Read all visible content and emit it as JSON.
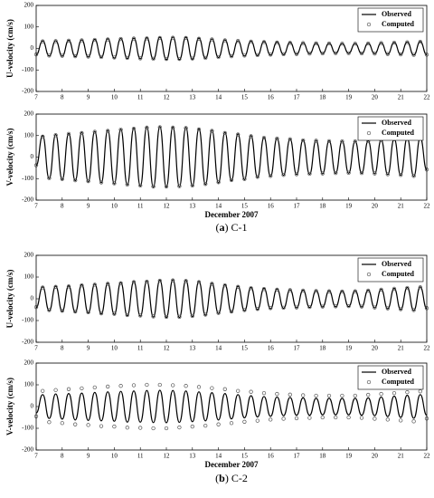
{
  "chart_data": [
    {
      "type": "line",
      "ylabel": "U-velocity (cm/s)",
      "x": [
        7,
        7.25,
        7.5,
        7.75,
        8,
        8.25,
        8.5,
        8.75,
        9,
        9.25,
        9.5,
        9.75,
        10,
        10.25,
        10.5,
        10.75,
        11,
        11.25,
        11.5,
        11.75,
        12,
        12.25,
        12.5,
        12.75,
        13,
        13.25,
        13.5,
        13.75,
        14,
        14.25,
        14.5,
        14.75,
        15,
        15.25,
        15.5,
        15.75,
        16,
        16.25,
        16.5,
        16.75,
        17,
        17.25,
        17.5,
        17.75,
        18,
        18.25,
        18.5,
        18.75,
        19,
        19.25,
        19.5,
        19.75,
        20,
        20.25,
        20.5,
        20.75,
        21,
        21.25,
        21.5,
        21.75,
        22
      ],
      "series": [
        {
          "name": "Observed",
          "color": "#000000",
          "values": [
            -30,
            35,
            -35,
            36,
            -36,
            38,
            -38,
            40,
            -40,
            42,
            -42,
            45,
            -45,
            46,
            -47,
            48,
            -48,
            50,
            -50,
            52,
            -52,
            53,
            -52,
            52,
            -50,
            48,
            -46,
            44,
            -42,
            40,
            -38,
            36,
            -35,
            34,
            -33,
            32,
            -31,
            30,
            -29,
            28,
            -27,
            26,
            -25,
            25,
            -24,
            24,
            -23,
            23,
            -23,
            23,
            -24,
            24,
            -25,
            26,
            -27,
            28,
            -29,
            30,
            -31,
            32,
            -30
          ]
        },
        {
          "name": "Computed",
          "color": "#555555",
          "marker": "circle",
          "values": [
            -28,
            33,
            -33,
            34,
            -34,
            36,
            -36,
            38,
            -38,
            40,
            -40,
            42,
            -42,
            44,
            -44,
            46,
            -46,
            47,
            -48,
            49,
            -49,
            50,
            -49,
            49,
            -47,
            45,
            -44,
            42,
            -40,
            38,
            -36,
            35,
            -33,
            32,
            -31,
            30,
            -29,
            28,
            -27,
            26,
            -26,
            25,
            -24,
            24,
            -23,
            23,
            -22,
            22,
            -22,
            22,
            -23,
            23,
            -24,
            25,
            -26,
            27,
            -28,
            29,
            -30,
            31,
            -29
          ]
        }
      ],
      "xlim": [
        7,
        22
      ],
      "ylim": [
        -200,
        200
      ],
      "xticks": [
        7,
        8,
        9,
        10,
        11,
        12,
        13,
        14,
        15,
        16,
        17,
        18,
        19,
        20,
        21,
        22
      ],
      "yticks": [
        -200,
        -100,
        0,
        100,
        200
      ],
      "legend": "upper right"
    },
    {
      "type": "line",
      "ylabel": "V-velocity (cm/s)",
      "xlabel": "December 2007",
      "x": [
        7,
        7.25,
        7.5,
        7.75,
        8,
        8.25,
        8.5,
        8.75,
        9,
        9.25,
        9.5,
        9.75,
        10,
        10.25,
        10.5,
        10.75,
        11,
        11.25,
        11.5,
        11.75,
        12,
        12.25,
        12.5,
        12.75,
        13,
        13.25,
        13.5,
        13.75,
        14,
        14.25,
        14.5,
        14.75,
        15,
        15.25,
        15.5,
        15.75,
        16,
        16.25,
        16.5,
        16.75,
        17,
        17.25,
        17.5,
        17.75,
        18,
        18.25,
        18.5,
        18.75,
        19,
        19.25,
        19.5,
        19.75,
        20,
        20.25,
        20.5,
        20.75,
        21,
        21.25,
        21.5,
        21.75,
        22
      ],
      "series": [
        {
          "name": "Observed",
          "color": "#000000",
          "values": [
            -40,
            100,
            -100,
            105,
            -105,
            110,
            -110,
            115,
            -115,
            120,
            -120,
            125,
            -125,
            130,
            -130,
            135,
            -135,
            140,
            -140,
            142,
            -140,
            140,
            -138,
            138,
            -135,
            132,
            -128,
            125,
            -120,
            115,
            -110,
            108,
            -105,
            100,
            -95,
            92,
            -90,
            88,
            -85,
            85,
            -82,
            80,
            -80,
            78,
            -78,
            76,
            -76,
            75,
            -75,
            75,
            -76,
            76,
            -78,
            80,
            -82,
            85,
            -85,
            88,
            -90,
            90,
            -60
          ]
        },
        {
          "name": "Computed",
          "color": "#555555",
          "marker": "circle",
          "values": [
            -38,
            95,
            -98,
            102,
            -102,
            108,
            -108,
            112,
            -112,
            118,
            -118,
            122,
            -122,
            128,
            -128,
            132,
            -132,
            137,
            -137,
            139,
            -137,
            137,
            -135,
            135,
            -132,
            129,
            -125,
            122,
            -117,
            112,
            -107,
            105,
            -102,
            97,
            -92,
            90,
            -88,
            86,
            -83,
            83,
            -80,
            78,
            -78,
            76,
            -76,
            74,
            -74,
            73,
            -73,
            73,
            -74,
            74,
            -76,
            78,
            -80,
            83,
            -83,
            86,
            -88,
            88,
            -58
          ]
        }
      ],
      "xlim": [
        7,
        22
      ],
      "ylim": [
        -200,
        200
      ],
      "xticks": [
        7,
        8,
        9,
        10,
        11,
        12,
        13,
        14,
        15,
        16,
        17,
        18,
        19,
        20,
        21,
        22
      ],
      "yticks": [
        -200,
        -100,
        0,
        100,
        200
      ],
      "legend": "upper right"
    },
    {
      "type": "line",
      "ylabel": "U-velocity (cm/s)",
      "x": [
        7,
        7.25,
        7.5,
        7.75,
        8,
        8.25,
        8.5,
        8.75,
        9,
        9.25,
        9.5,
        9.75,
        10,
        10.25,
        10.5,
        10.75,
        11,
        11.25,
        11.5,
        11.75,
        12,
        12.25,
        12.5,
        12.75,
        13,
        13.25,
        13.5,
        13.75,
        14,
        14.25,
        14.5,
        14.75,
        15,
        15.25,
        15.5,
        15.75,
        16,
        16.25,
        16.5,
        16.75,
        17,
        17.25,
        17.5,
        17.75,
        18,
        18.25,
        18.5,
        18.75,
        19,
        19.25,
        19.5,
        19.75,
        20,
        20.25,
        20.5,
        20.75,
        21,
        21.25,
        21.5,
        21.75,
        22
      ],
      "series": [
        {
          "name": "Observed",
          "color": "#000000",
          "values": [
            -40,
            55,
            -55,
            58,
            -58,
            60,
            -62,
            65,
            -65,
            68,
            -70,
            72,
            -72,
            75,
            -78,
            80,
            -80,
            82,
            -84,
            86,
            -86,
            88,
            -86,
            85,
            -82,
            80,
            -76,
            72,
            -68,
            65,
            -62,
            58,
            -55,
            52,
            -50,
            48,
            -46,
            45,
            -44,
            42,
            -42,
            40,
            -40,
            38,
            -38,
            37,
            -37,
            36,
            -36,
            37,
            -38,
            40,
            -42,
            44,
            -46,
            48,
            -50,
            52,
            -54,
            55,
            -45
          ]
        },
        {
          "name": "Computed",
          "color": "#555555",
          "marker": "circle",
          "values": [
            -38,
            52,
            -52,
            55,
            -55,
            57,
            -59,
            62,
            -62,
            65,
            -67,
            69,
            -69,
            72,
            -75,
            77,
            -77,
            79,
            -81,
            83,
            -83,
            85,
            -83,
            82,
            -79,
            77,
            -73,
            69,
            -65,
            62,
            -59,
            55,
            -52,
            49,
            -47,
            45,
            -43,
            42,
            -41,
            40,
            -40,
            38,
            -38,
            36,
            -36,
            35,
            -35,
            34,
            -34,
            35,
            -36,
            38,
            -40,
            42,
            -44,
            46,
            -48,
            50,
            -52,
            53,
            -43
          ]
        }
      ],
      "xlim": [
        7,
        22
      ],
      "ylim": [
        -200,
        200
      ],
      "xticks": [
        7,
        8,
        9,
        10,
        11,
        12,
        13,
        14,
        15,
        16,
        17,
        18,
        19,
        20,
        21,
        22
      ],
      "yticks": [
        -200,
        -100,
        0,
        100,
        200
      ],
      "legend": "upper right"
    },
    {
      "type": "line",
      "ylabel": "V-velocity (cm/s)",
      "xlabel": "December 2007",
      "x": [
        7,
        7.25,
        7.5,
        7.75,
        8,
        8.25,
        8.5,
        8.75,
        9,
        9.25,
        9.5,
        9.75,
        10,
        10.25,
        10.5,
        10.75,
        11,
        11.25,
        11.5,
        11.75,
        12,
        12.25,
        12.5,
        12.75,
        13,
        13.25,
        13.5,
        13.75,
        14,
        14.25,
        14.5,
        14.75,
        15,
        15.25,
        15.5,
        15.75,
        16,
        16.25,
        16.5,
        16.75,
        17,
        17.25,
        17.5,
        17.75,
        18,
        18.25,
        18.5,
        18.75,
        19,
        19.25,
        19.5,
        19.75,
        20,
        20.25,
        20.5,
        20.75,
        21,
        21.25,
        21.5,
        21.75,
        22
      ],
      "series": [
        {
          "name": "Observed",
          "color": "#000000",
          "values": [
            -30,
            55,
            -55,
            58,
            -58,
            60,
            -62,
            62,
            -64,
            65,
            -66,
            68,
            -68,
            70,
            -72,
            72,
            -72,
            74,
            -74,
            75,
            -75,
            74,
            -73,
            72,
            -70,
            68,
            -66,
            64,
            -62,
            60,
            -57,
            55,
            -52,
            50,
            -48,
            46,
            -45,
            44,
            -42,
            42,
            -40,
            40,
            -40,
            38,
            -38,
            38,
            -38,
            38,
            -38,
            38,
            -40,
            40,
            -42,
            44,
            -46,
            48,
            -50,
            52,
            -54,
            55,
            -40
          ]
        },
        {
          "name": "Computed",
          "color": "#555555",
          "marker": "circle",
          "values": [
            -45,
            72,
            -72,
            76,
            -76,
            80,
            -82,
            84,
            -85,
            88,
            -90,
            92,
            -92,
            95,
            -97,
            98,
            -98,
            100,
            -100,
            100,
            -100,
            98,
            -96,
            95,
            -92,
            90,
            -88,
            85,
            -82,
            80,
            -76,
            72,
            -70,
            68,
            -65,
            62,
            -60,
            58,
            -56,
            55,
            -54,
            52,
            -52,
            50,
            -50,
            50,
            -50,
            50,
            -50,
            50,
            -52,
            54,
            -56,
            58,
            -60,
            62,
            -64,
            66,
            -68,
            70,
            -55
          ]
        }
      ],
      "xlim": [
        7,
        22
      ],
      "ylim": [
        -200,
        200
      ],
      "xticks": [
        7,
        8,
        9,
        10,
        11,
        12,
        13,
        14,
        15,
        16,
        17,
        18,
        19,
        20,
        21,
        22
      ],
      "yticks": [
        -200,
        -100,
        0,
        100,
        200
      ],
      "legend": "upper right"
    }
  ],
  "captions": [
    {
      "prefix": "(",
      "letter": "a",
      "suffix": ") C-1"
    },
    {
      "prefix": "(",
      "letter": "b",
      "suffix": ") C-2"
    }
  ]
}
